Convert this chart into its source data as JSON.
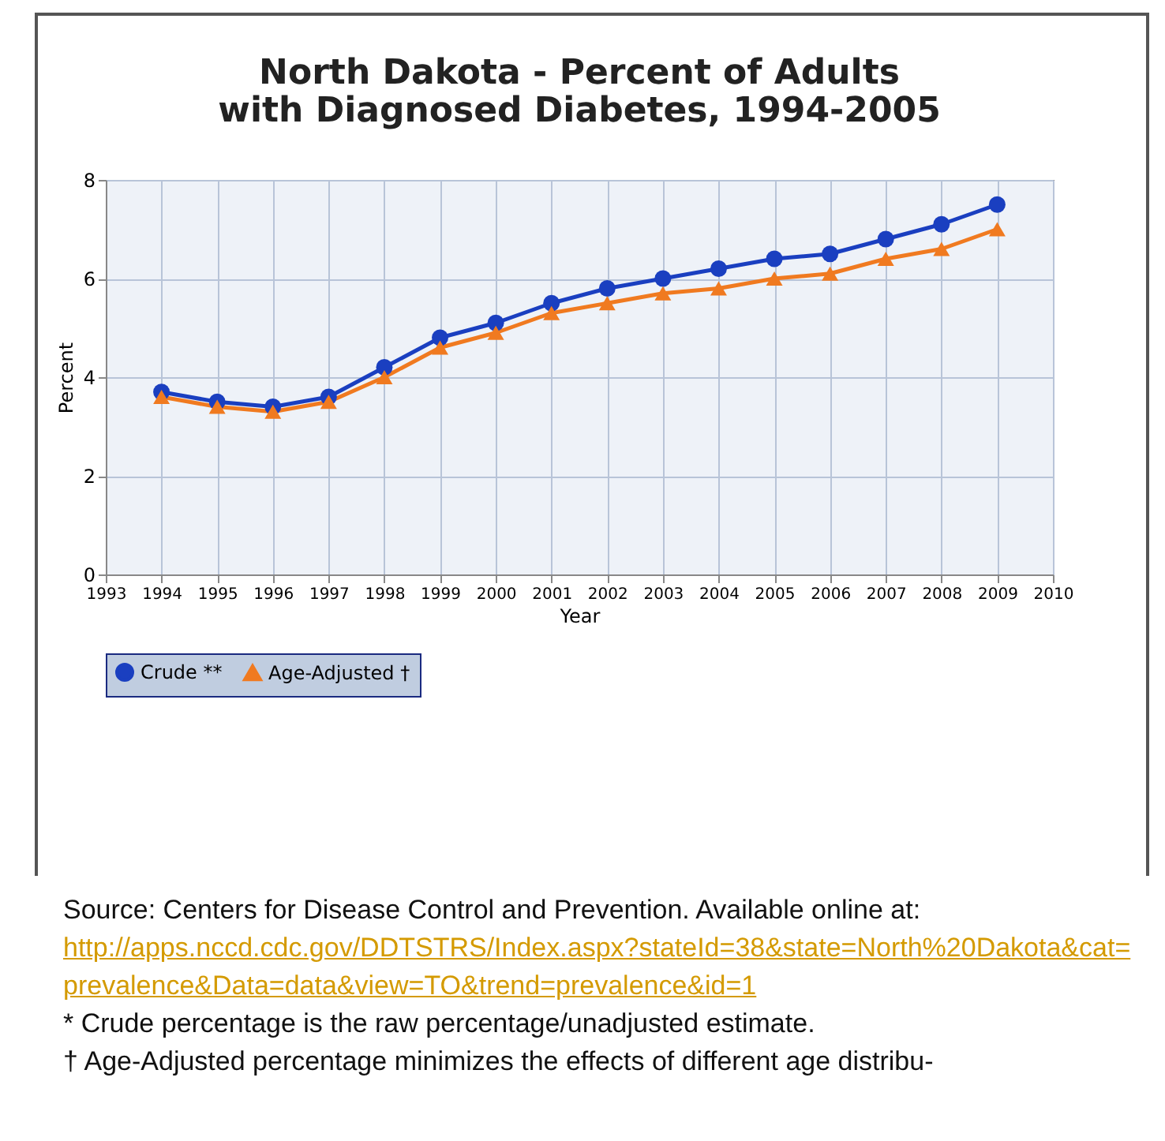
{
  "chart_data": {
    "type": "line",
    "title": "North Dakota - Percent of Adults with Diagnosed Diabetes, 1994-2005",
    "xlabel": "Year",
    "ylabel": "Percent",
    "x": [
      1994,
      1995,
      1996,
      1997,
      1998,
      1999,
      2000,
      2001,
      2002,
      2003,
      2004,
      2005,
      2006,
      2007,
      2008,
      2009
    ],
    "series": [
      {
        "name": "Crude **",
        "color": "#1a3fc0",
        "marker": "circle",
        "values": [
          3.7,
          3.5,
          3.4,
          3.6,
          4.2,
          4.8,
          5.1,
          5.5,
          5.8,
          6.0,
          6.2,
          6.4,
          6.5,
          6.8,
          7.1,
          7.5
        ]
      },
      {
        "name": "Age-Adjusted †",
        "color": "#f07a20",
        "marker": "triangle",
        "values": [
          3.6,
          3.4,
          3.3,
          3.5,
          4.0,
          4.6,
          4.9,
          5.3,
          5.5,
          5.7,
          5.8,
          6.0,
          6.1,
          6.4,
          6.6,
          7.0
        ]
      }
    ],
    "xlim": [
      1993,
      2010
    ],
    "xticks": [
      1993,
      1994,
      1995,
      1996,
      1997,
      1998,
      1999,
      2000,
      2001,
      2002,
      2003,
      2004,
      2005,
      2006,
      2007,
      2008,
      2009,
      2010
    ],
    "ylim": [
      0,
      8
    ],
    "yticks": [
      0,
      2,
      4,
      6,
      8
    ],
    "grid": true,
    "legend": "bottom",
    "annotations": [
      "Source: Centers for Disease Control and Prevention. Available online at:",
      "http://apps.nccd.cdc.gov/DDTSTRS/Index.aspx?stateId=38&state=North%20Dakota&cat=prevalence&Data=data&view=TO&trend=prevalence&id=1",
      "* Crude percentage is the raw percentage/unadjusted estimate.",
      "† Age-Adjusted percentage minimizes the effects of different age distribu-"
    ]
  }
}
